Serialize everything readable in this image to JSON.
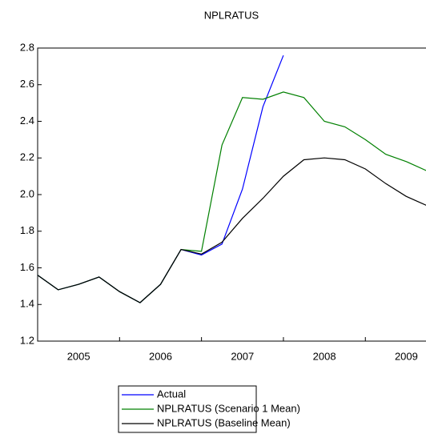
{
  "chart_data": {
    "type": "line",
    "title": "NPLRATUS",
    "categories": [
      "2005",
      null,
      null,
      null,
      "2006",
      null,
      null,
      null,
      "2007",
      null,
      null,
      null,
      "2008",
      null,
      null,
      null,
      "2009",
      null,
      null,
      null
    ],
    "series": [
      {
        "name": "Actual",
        "color": "#0000ff",
        "values": [
          1.56,
          1.48,
          1.51,
          1.55,
          1.47,
          1.41,
          1.51,
          1.7,
          1.67,
          1.73,
          2.03,
          2.48,
          2.76,
          null,
          null,
          null,
          null,
          null,
          null,
          null
        ]
      },
      {
        "name": "NPLRATUS (Scenario 1 Mean)",
        "color": "#008000",
        "values": [
          1.56,
          1.48,
          1.51,
          1.55,
          1.47,
          1.41,
          1.51,
          1.7,
          1.69,
          2.27,
          2.53,
          2.52,
          2.56,
          2.53,
          2.4,
          2.37,
          2.3,
          2.22,
          2.18,
          2.13
        ]
      },
      {
        "name": "NPLRATUS (Baseline Mean)",
        "color": "#000000",
        "values": [
          1.56,
          1.48,
          1.51,
          1.55,
          1.47,
          1.41,
          1.51,
          1.7,
          1.675,
          1.74,
          1.87,
          1.98,
          2.1,
          2.19,
          2.2,
          2.19,
          2.14,
          2.06,
          1.99,
          1.94
        ]
      }
    ],
    "ylim": [
      1.2,
      2.8
    ],
    "yticks": [
      1.2,
      1.4,
      1.6,
      1.8,
      {
        "value": 2,
        "label": "2.0"
      },
      2.2,
      2.4,
      2.6,
      2.8
    ],
    "legend": "bottom"
  }
}
